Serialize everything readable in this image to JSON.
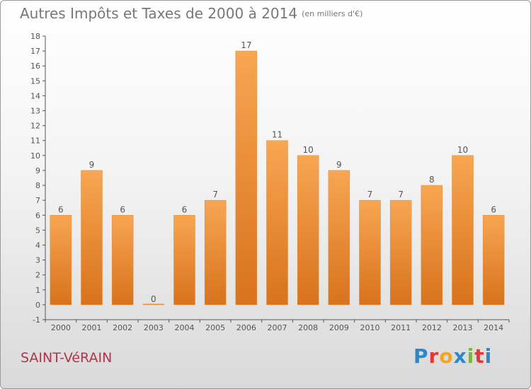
{
  "header": {
    "title": "Autres Impôts et Taxes de 2000 à 2014",
    "subtitle": "(en milliers d'€)"
  },
  "footer": {
    "commune": "SAINT-VéRAIN",
    "logo_text": "Proxiti",
    "logo_colors": [
      "#2e86c9",
      "#e53935",
      "#f4a51c",
      "#2e86c9",
      "#7cb342",
      "#e53935",
      "#2e86c9"
    ]
  },
  "colors": {
    "bar_top": "#f7a652",
    "bar_bottom": "#d9721c",
    "axis": "#555555",
    "text": "#555555"
  },
  "chart_data": {
    "type": "bar",
    "title": "Autres Impôts et Taxes de 2000 à 2014",
    "subtitle": "(en milliers d'€)",
    "categories": [
      "2000",
      "2001",
      "2002",
      "2003",
      "2004",
      "2005",
      "2006",
      "2007",
      "2008",
      "2009",
      "2010",
      "2011",
      "2012",
      "2013",
      "2014"
    ],
    "values": [
      6,
      9,
      6,
      0,
      6,
      7,
      17,
      11,
      10,
      9,
      7,
      7,
      8,
      10,
      6
    ],
    "ylim": [
      -1,
      18
    ],
    "yticks": [
      -1,
      0,
      1,
      2,
      3,
      4,
      5,
      6,
      7,
      8,
      9,
      10,
      11,
      12,
      13,
      14,
      15,
      16,
      17,
      18
    ],
    "xlabel": "",
    "ylabel": "",
    "grid": false
  }
}
